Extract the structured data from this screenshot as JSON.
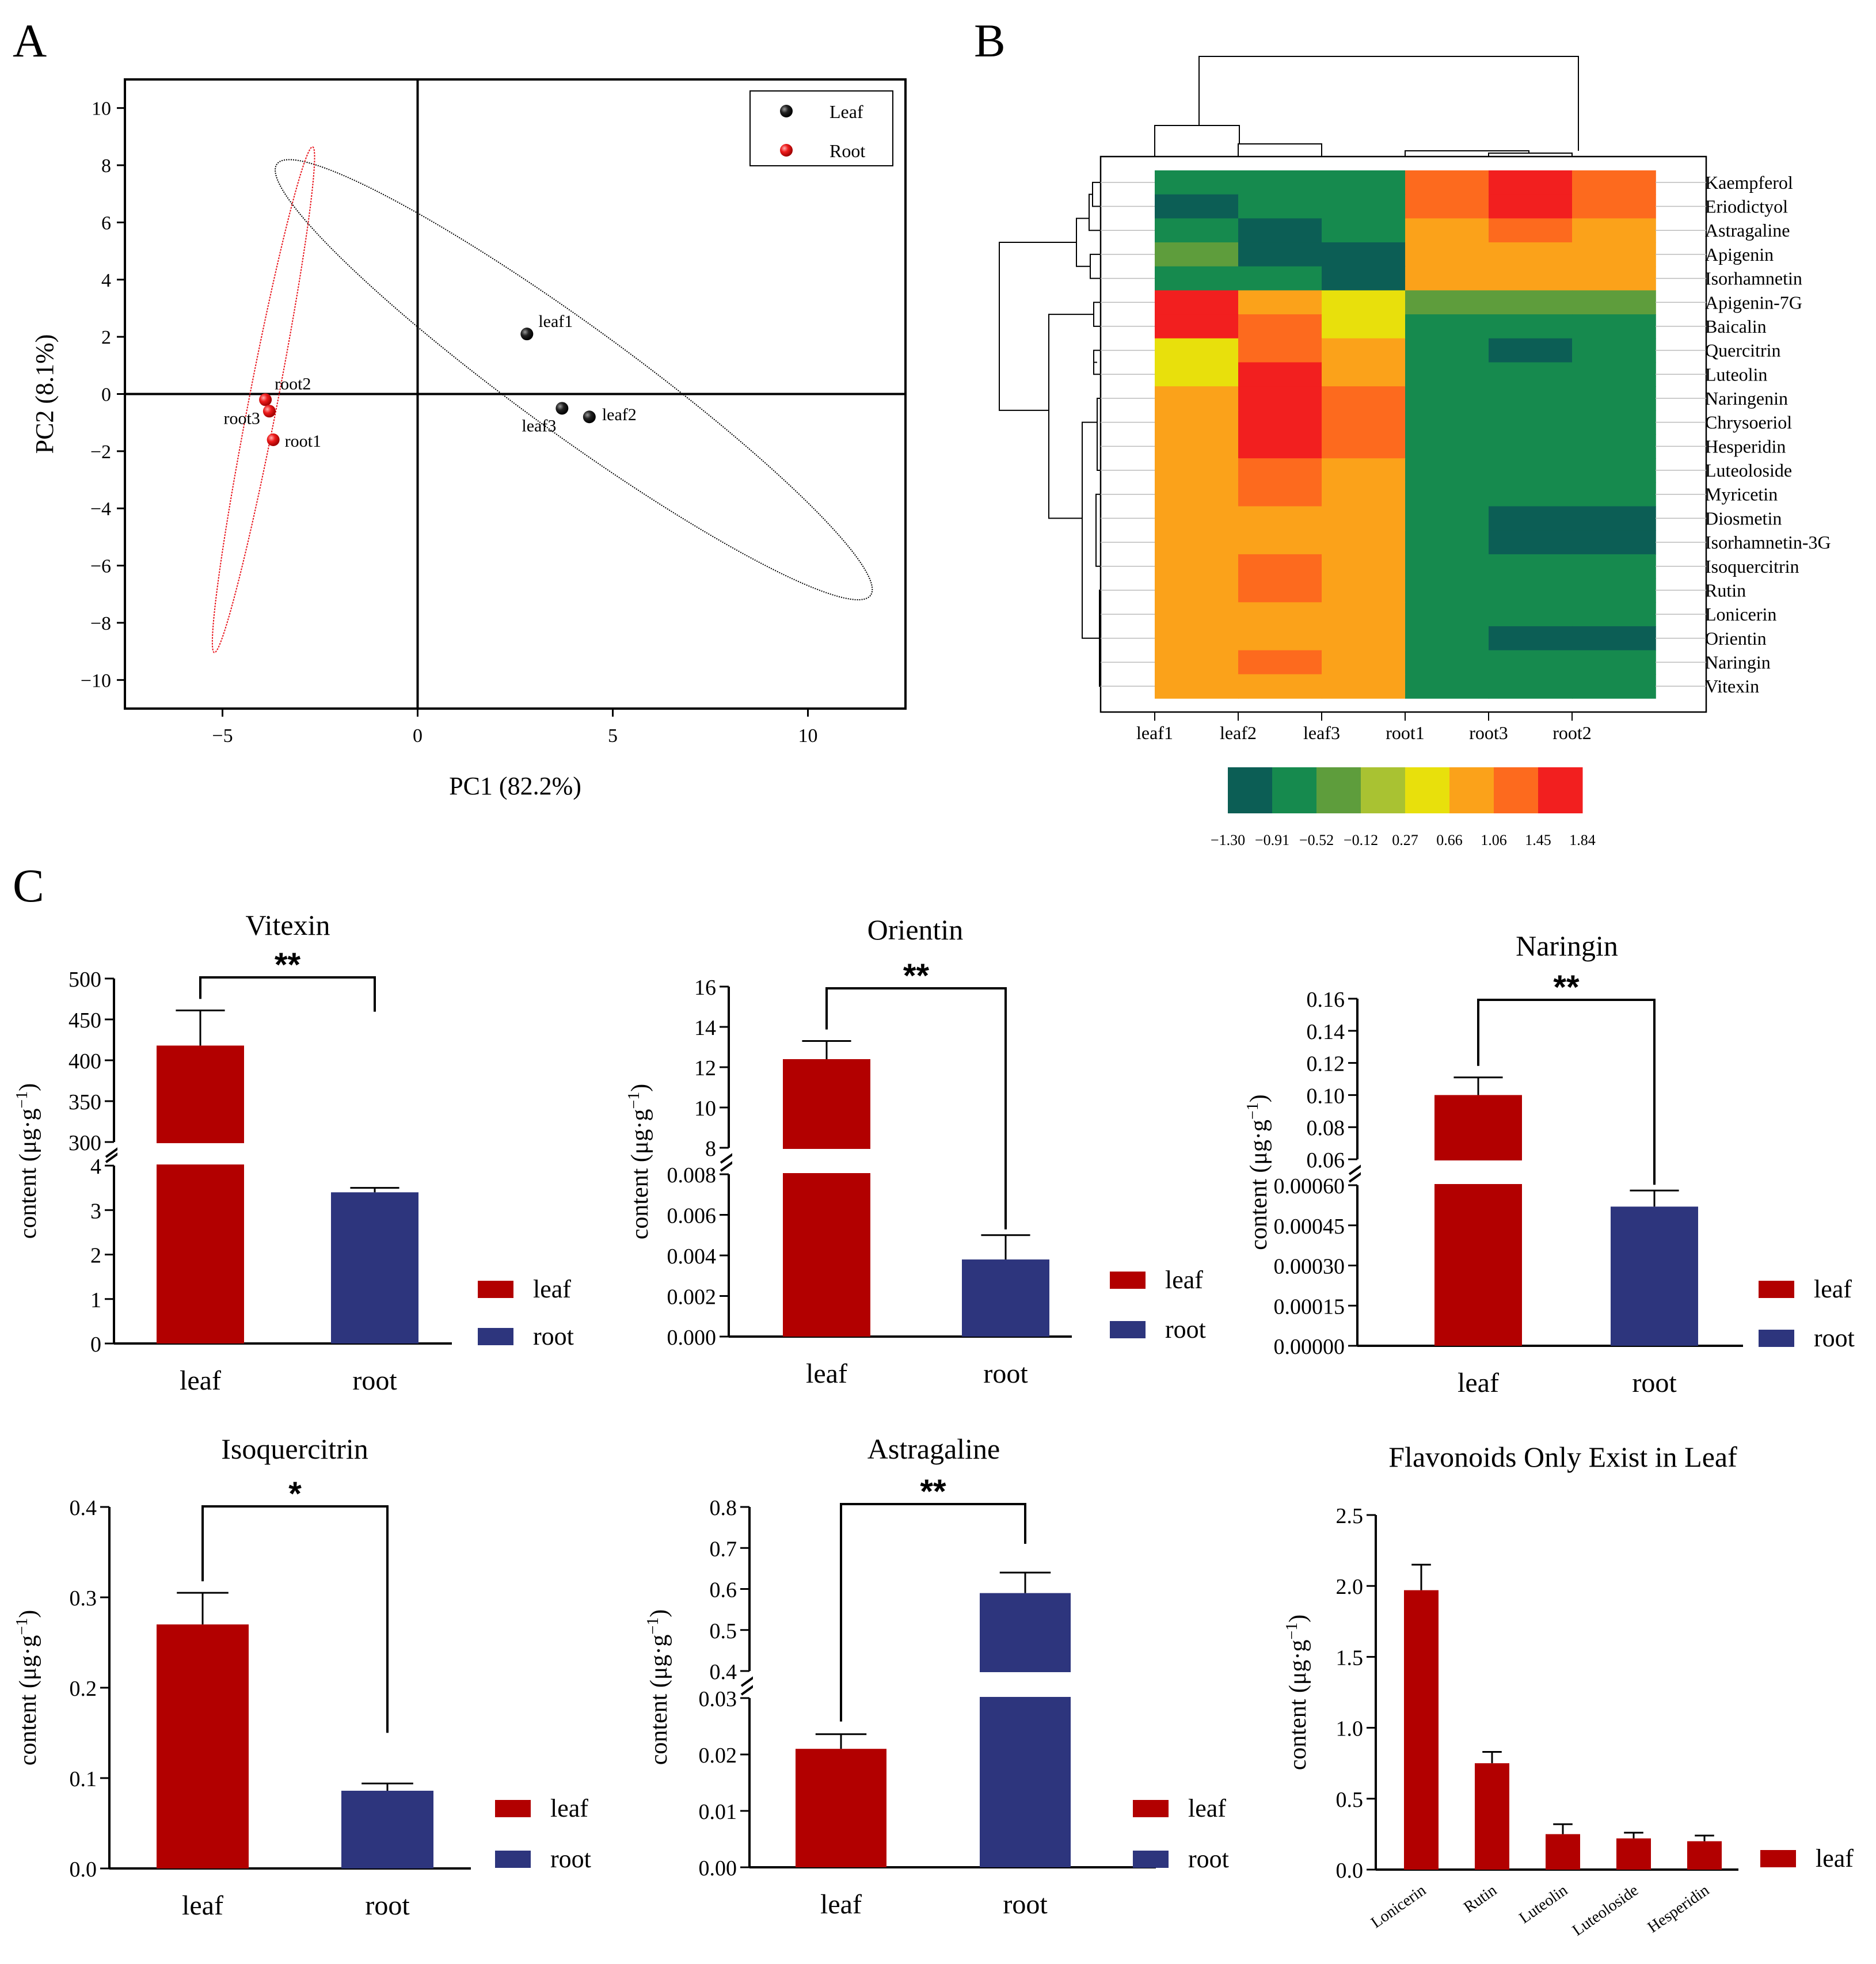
{
  "panels": {
    "a": "A",
    "b": "B",
    "c": "C"
  },
  "chart_data": [
    {
      "id": "pca",
      "type": "scatter",
      "xlabel": "PC1 (82.2%)",
      "ylabel": "PC2 (8.1%)",
      "xlim": [
        -7.5,
        12.5
      ],
      "ylim": [
        -11,
        11
      ],
      "xticks": [
        -5,
        0,
        5,
        10
      ],
      "yticks": [
        10,
        8,
        6,
        4,
        2,
        0,
        -2,
        -4,
        -6,
        -8,
        -10
      ],
      "legend": [
        {
          "name": "Leaf",
          "color": "#111111"
        },
        {
          "name": "Root",
          "color": "#e8141c"
        }
      ],
      "points": [
        {
          "label": "leaf1",
          "group": "Leaf",
          "x": 2.8,
          "y": 2.1
        },
        {
          "label": "leaf3",
          "group": "Leaf",
          "x": 3.7,
          "y": -0.5
        },
        {
          "label": "leaf2",
          "group": "Leaf",
          "x": 4.4,
          "y": -0.8
        },
        {
          "label": "root2",
          "group": "Root",
          "x": -3.9,
          "y": -0.2
        },
        {
          "label": "root3",
          "group": "Root",
          "x": -3.8,
          "y": -0.6
        },
        {
          "label": "root1",
          "group": "Root",
          "x": -3.7,
          "y": -1.6
        }
      ],
      "ellipses": [
        {
          "group": "Leaf",
          "cx": 4.0,
          "cy": 0.5,
          "rx": 9.4,
          "ry": 1.9,
          "angle_deg": 36
        },
        {
          "group": "Root",
          "cx": -3.95,
          "cy": -0.2,
          "rx": 6.6,
          "ry": 0.5,
          "angle_deg": -79
        }
      ]
    },
    {
      "id": "heatmap",
      "type": "heatmap",
      "columns": [
        "leaf1",
        "leaf2",
        "leaf3",
        "root1",
        "root3",
        "root2"
      ],
      "rows": [
        "Kaempferol",
        "Eriodictyol",
        "Astragaline",
        "Apigenin",
        "Isorhamnetin",
        "Apigenin-7G",
        "Baicalin",
        "Quercitrin",
        "Luteolin",
        "Naringenin",
        "Chrysoeriol",
        "Hesperidin",
        "Luteoloside",
        "Myricetin",
        "Diosmetin",
        "Isorhamnetin-3G",
        "Isoquercitrin",
        "Rutin",
        "Lonicerin",
        "Orientin",
        "Naringin",
        "Vitexin"
      ],
      "values": [
        [
          -0.9,
          -0.9,
          -0.6,
          1.1,
          1.5,
          1.1
        ],
        [
          -1.2,
          -0.9,
          -0.6,
          1.1,
          1.5,
          1.1
        ],
        [
          -0.9,
          -1.1,
          -0.9,
          1.0,
          1.1,
          0.9
        ],
        [
          -0.5,
          -1.2,
          -1.1,
          1.0,
          1.0,
          1.0
        ],
        [
          -0.7,
          -0.9,
          -1.0,
          0.7,
          0.7,
          0.7
        ],
        [
          1.6,
          0.8,
          0.3,
          -0.2,
          -0.2,
          -0.2
        ],
        [
          1.84,
          1.2,
          0.5,
          -0.6,
          -0.6,
          -0.6
        ],
        [
          0.6,
          1.3,
          1.0,
          -0.9,
          -1.3,
          -0.9
        ],
        [
          0.3,
          1.5,
          1.0,
          -0.9,
          -0.9,
          -0.9
        ],
        [
          0.7,
          1.5,
          1.1,
          -0.9,
          -0.9,
          -0.9
        ],
        [
          0.7,
          1.5,
          1.1,
          -0.9,
          -0.9,
          -0.9
        ],
        [
          0.9,
          1.5,
          1.1,
          -0.9,
          -0.9,
          -0.9
        ],
        [
          1.0,
          1.3,
          1.0,
          -0.9,
          -0.9,
          -0.9
        ],
        [
          1.0,
          1.1,
          1.0,
          -0.9,
          -0.9,
          -0.9
        ],
        [
          1.0,
          1.0,
          1.0,
          -0.9,
          -1.3,
          -1.3
        ],
        [
          1.0,
          1.0,
          1.0,
          -0.9,
          -1.3,
          -1.3
        ],
        [
          1.0,
          1.4,
          1.0,
          -0.9,
          -0.9,
          -0.9
        ],
        [
          1.0,
          1.4,
          1.0,
          -0.9,
          -0.9,
          -0.9
        ],
        [
          1.0,
          1.0,
          1.0,
          -0.9,
          -0.9,
          -0.9
        ],
        [
          1.0,
          1.0,
          1.0,
          -0.9,
          -1.3,
          -1.3
        ],
        [
          1.0,
          1.4,
          1.0,
          -0.9,
          -0.9,
          -0.9
        ],
        [
          1.0,
          1.0,
          1.0,
          -0.9,
          -0.9,
          -0.9
        ]
      ],
      "scale_ticks": [
        "-1.30",
        "-0.91",
        "-0.52",
        "-0.12",
        "0.27",
        "0.66",
        "1.06",
        "1.45",
        "1.84"
      ],
      "scale_colors": [
        "#0c5e55",
        "#168a4e",
        "#5e9d3c",
        "#a9c232",
        "#e8e00c",
        "#fba21a",
        "#fd6a1e",
        "#f21f1f"
      ]
    },
    {
      "id": "vitexin",
      "type": "bar",
      "title": "Vitexin",
      "ylabel": "content (μg·g⁻¹)",
      "categories": [
        "leaf",
        "root"
      ],
      "values": [
        418,
        3.4
      ],
      "errors": [
        43,
        0.1
      ],
      "colors": [
        "#b20000",
        "#2d357d"
      ],
      "broken_axis": {
        "lower": [
          0,
          4
        ],
        "upper": [
          300,
          500
        ]
      },
      "lower_ticks": [
        "0",
        "1",
        "2",
        "3",
        "4"
      ],
      "upper_ticks": [
        "300",
        "350",
        "400",
        "450",
        "500"
      ],
      "significance": "**",
      "legend": [
        "leaf",
        "root"
      ]
    },
    {
      "id": "orientin",
      "type": "bar",
      "title": "Orientin",
      "ylabel": "content (μg·g⁻¹)",
      "categories": [
        "leaf",
        "root"
      ],
      "values": [
        12.4,
        0.0038
      ],
      "errors": [
        0.9,
        0.0012
      ],
      "colors": [
        "#b20000",
        "#2d357d"
      ],
      "broken_axis": {
        "lower": [
          0,
          0.008
        ],
        "upper": [
          8,
          16
        ]
      },
      "lower_ticks": [
        "0.000",
        "0.002",
        "0.004",
        "0.006",
        "0.008"
      ],
      "upper_ticks": [
        "8",
        "10",
        "12",
        "14",
        "16"
      ],
      "significance": "**",
      "legend": [
        "leaf",
        "root"
      ]
    },
    {
      "id": "naringin",
      "type": "bar",
      "title": "Naringin",
      "ylabel": "content (μg·g⁻¹)",
      "categories": [
        "leaf",
        "root"
      ],
      "values": [
        0.1,
        0.00052
      ],
      "errors": [
        0.011,
        6e-05
      ],
      "colors": [
        "#b20000",
        "#2d357d"
      ],
      "broken_axis": {
        "lower": [
          0,
          0.0006
        ],
        "upper": [
          0.06,
          0.16
        ]
      },
      "lower_ticks": [
        "0.00000",
        "0.00015",
        "0.00030",
        "0.00045",
        "0.00060"
      ],
      "upper_ticks": [
        "0.06",
        "0.08",
        "0.10",
        "0.12",
        "0.14",
        "0.16"
      ],
      "significance": "**",
      "legend": [
        "leaf",
        "root"
      ]
    },
    {
      "id": "isoquercitrin",
      "type": "bar",
      "title": "Isoquercitrin",
      "ylabel": "content (μg·g⁻¹)",
      "categories": [
        "leaf",
        "root"
      ],
      "values": [
        0.27,
        0.086
      ],
      "errors": [
        0.035,
        0.008
      ],
      "colors": [
        "#b20000",
        "#2d357d"
      ],
      "ylim": [
        0,
        0.4
      ],
      "ticks": [
        "0.0",
        "0.1",
        "0.2",
        "0.3",
        "0.4"
      ],
      "significance": "*",
      "legend": [
        "leaf",
        "root"
      ]
    },
    {
      "id": "astragaline",
      "type": "bar",
      "title": "Astragaline",
      "ylabel": "content (μg·g⁻¹)",
      "categories": [
        "leaf",
        "root"
      ],
      "values": [
        0.021,
        0.59
      ],
      "errors": [
        0.0026,
        0.05
      ],
      "colors": [
        "#b20000",
        "#2d357d"
      ],
      "broken_axis": {
        "lower": [
          0,
          0.03
        ],
        "upper": [
          0.4,
          0.8
        ]
      },
      "lower_ticks": [
        "0.00",
        "0.01",
        "0.02",
        "0.03"
      ],
      "upper_ticks": [
        "0.4",
        "0.5",
        "0.6",
        "0.7",
        "0.8"
      ],
      "significance": "**",
      "legend": [
        "leaf",
        "root"
      ]
    },
    {
      "id": "leaf_only",
      "type": "bar",
      "title": "Flavonoids Only Exist in Leaf",
      "ylabel": "content (μg·g⁻¹)",
      "categories": [
        "Lonicerin",
        "Rutin",
        "Luteolin",
        "Luteoloside",
        "Hesperidin"
      ],
      "values": [
        1.97,
        0.75,
        0.25,
        0.22,
        0.2
      ],
      "errors": [
        0.18,
        0.08,
        0.07,
        0.04,
        0.04
      ],
      "colors": [
        "#b20000"
      ],
      "ylim": [
        0,
        2.5
      ],
      "ticks": [
        "0.0",
        "0.5",
        "1.0",
        "1.5",
        "2.0",
        "2.5"
      ],
      "legend": [
        "leaf"
      ]
    }
  ]
}
